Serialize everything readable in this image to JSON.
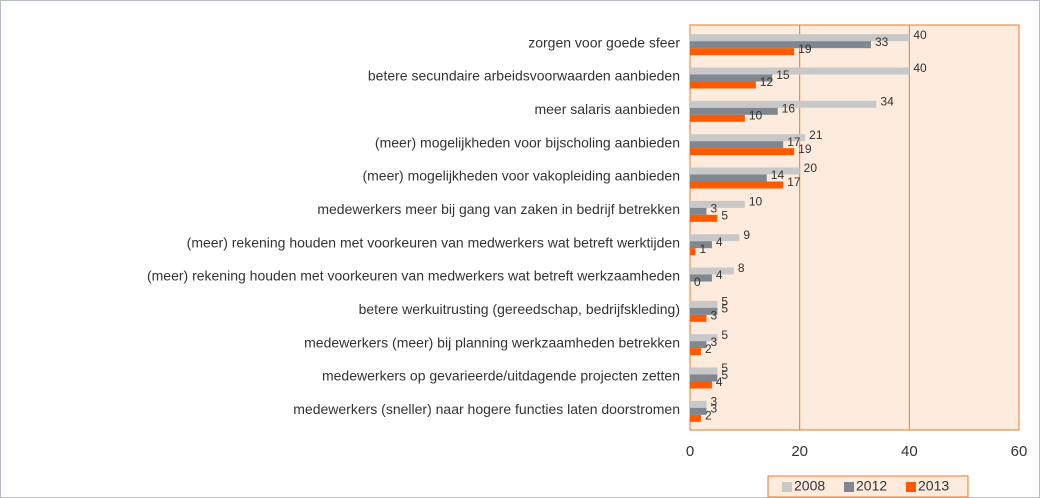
{
  "chart_data": {
    "type": "hbar",
    "categories": [
      "zorgen voor goede sfeer",
      "betere secundaire arbeidsvoorwaarden aanbieden",
      "meer salaris aanbieden",
      "(meer) mogelijkheden voor bijscholing aanbieden",
      "(meer) mogelijkheden voor vakopleiding aanbieden",
      "medewerkers meer bij gang van zaken in bedrijf betrekken",
      "(meer) rekening houden met voorkeuren van medwerkers wat betreft werktijden",
      "(meer) rekening houden met voorkeuren van medwerkers wat betreft werkzaamheden",
      "betere werkuitrusting (gereedschap, bedrijfskleding)",
      "medewerkers (meer) bij planning werkzaamheden betrekken",
      "medewerkers op gevarieerde/uitdagende projecten zetten",
      "medewerkers (sneller) naar hogere functies laten doorstromen"
    ],
    "series": [
      {
        "name": "2008",
        "color": "#c8c8c8",
        "values": [
          40,
          40,
          34,
          21,
          20,
          10,
          9,
          8,
          5,
          5,
          5,
          3
        ]
      },
      {
        "name": "2012",
        "color": "#7f8791",
        "values": [
          33,
          15,
          16,
          17,
          14,
          3,
          4,
          4,
          5,
          3,
          5,
          3
        ]
      },
      {
        "name": "2013",
        "color": "#ff5a00",
        "values": [
          19,
          12,
          10,
          19,
          17,
          5,
          1,
          0,
          3,
          2,
          4,
          2
        ]
      }
    ],
    "xlim": [
      0,
      60
    ],
    "xticks": [
      0,
      20,
      40,
      60
    ],
    "grid": true,
    "legend": "bottom-right"
  }
}
